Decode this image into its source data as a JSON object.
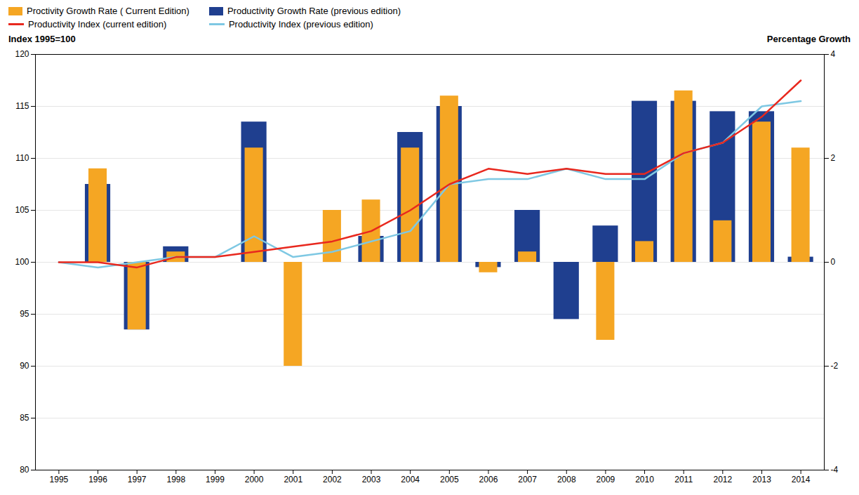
{
  "chart_data": {
    "type": "bar",
    "categories": [
      1995,
      1996,
      1997,
      1998,
      1999,
      2000,
      2001,
      2002,
      2003,
      2004,
      2005,
      2006,
      2007,
      2008,
      2009,
      2010,
      2011,
      2012,
      2013,
      2014
    ],
    "series": [
      {
        "name": "Proctivity Growth Rate ( Current Edition)",
        "type": "bar",
        "color": "#F5A623",
        "bottom": 100,
        "values": [
          100,
          109.0,
          93.5,
          101.0,
          100.0,
          111.0,
          90.0,
          105.0,
          106.0,
          111.0,
          116.0,
          99.0,
          101.0,
          100.0,
          92.5,
          102.0,
          116.5,
          104.0,
          113.5,
          111.0
        ]
      },
      {
        "name": "Productivity Growth Rate (previous edition)",
        "type": "bar",
        "color": "#1F3F8F",
        "bottom": 100,
        "values": [
          100,
          107.5,
          93.5,
          101.5,
          100.0,
          113.5,
          100.0,
          100.0,
          102.5,
          112.5,
          115.0,
          99.5,
          105.0,
          94.5,
          103.5,
          115.5,
          115.5,
          114.5,
          114.5,
          100.5
        ]
      },
      {
        "name": "Productivity Index (current edition)",
        "type": "line",
        "color": "#E8281E",
        "values": [
          100,
          100.0,
          99.5,
          100.5,
          100.5,
          101.0,
          101.5,
          102.0,
          103.0,
          105.0,
          107.5,
          109.0,
          108.5,
          109.0,
          108.5,
          108.5,
          110.5,
          111.5,
          114.0,
          117.5
        ]
      },
      {
        "name": "Productivity Index (previous edition)",
        "type": "line",
        "color": "#7EC8E3",
        "values": [
          100,
          99.5,
          100.0,
          100.5,
          100.5,
          102.5,
          100.5,
          101.0,
          102.0,
          103.0,
          107.5,
          108.0,
          108.0,
          109.0,
          108.0,
          108.0,
          110.5,
          111.5,
          115.0,
          115.5
        ]
      }
    ],
    "ylabel": "Index 1995=100",
    "y2label": "Percentage Growth",
    "ylim": [
      80,
      120
    ],
    "yticks": [
      80,
      85,
      90,
      95,
      100,
      105,
      110,
      115,
      120
    ],
    "y2lim": [
      -4,
      4
    ],
    "y2ticks": [
      -4,
      -2,
      0,
      2,
      4
    ],
    "grid": true,
    "legend": "upper left"
  }
}
